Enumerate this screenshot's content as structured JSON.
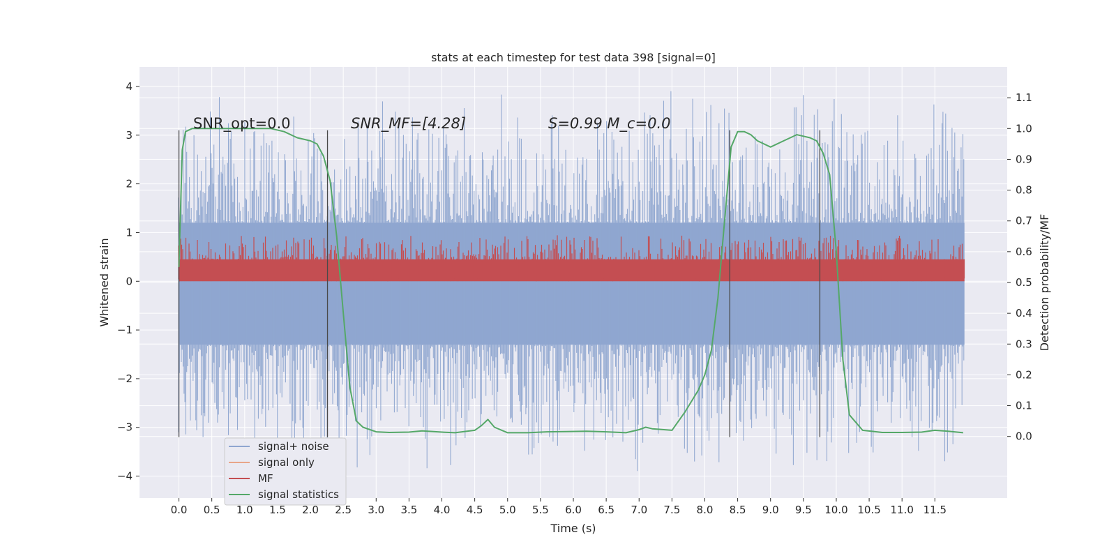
{
  "chart_data": {
    "type": "line",
    "title": "stats at each timestep for test data 398 [signal=0]",
    "xlabel": "Time (s)",
    "ylabel": "Whitened strain",
    "y2label": "Detection probability/MF",
    "xlim": [
      -0.6,
      12.6
    ],
    "ylim": [
      -4.45,
      4.4
    ],
    "y2lim": [
      -0.2,
      1.2
    ],
    "x_ticks": [
      0.0,
      0.5,
      1.0,
      1.5,
      2.0,
      2.5,
      3.0,
      3.5,
      4.0,
      4.5,
      5.0,
      5.5,
      6.0,
      6.5,
      7.0,
      7.5,
      8.0,
      8.5,
      9.0,
      9.5,
      10.0,
      10.5,
      11.0,
      11.5
    ],
    "x_tick_labels": [
      "0.0",
      "0.5",
      "1.0",
      "1.5",
      "2.0",
      "2.5",
      "3.0",
      "3.5",
      "4.0",
      "4.5",
      "5.0",
      "5.5",
      "6.0",
      "6.5",
      "7.0",
      "7.5",
      "8.0",
      "8.5",
      "9.0",
      "9.5",
      "10.0",
      "10.5",
      "11.0",
      "11.5"
    ],
    "y_ticks": [
      4,
      3,
      2,
      1,
      0,
      -1,
      -2,
      -3,
      -4
    ],
    "y_tick_labels": [
      "4",
      "3",
      "2",
      "1",
      "0",
      "−1",
      "−2",
      "−3",
      "−4"
    ],
    "y2_ticks": [
      1.1,
      1.0,
      0.9,
      0.8,
      0.7,
      0.6,
      0.5,
      0.4,
      0.3,
      0.2,
      0.1,
      0.0
    ],
    "y2_tick_labels": [
      "1.1",
      "1.0",
      "0.9",
      "0.8",
      "0.7",
      "0.6",
      "0.5",
      "0.4",
      "0.3",
      "0.2",
      "0.1",
      "0.0"
    ],
    "grid": true,
    "legend_position": "lower-left",
    "noise_band": {
      "t_start": 0.0,
      "t_end": 11.95,
      "typical_low": -1.3,
      "typical_high": 1.2,
      "peak_max": 4.0,
      "peak_min": -4.1
    },
    "mf_band": {
      "t_start": 0.0,
      "t_end": 11.95,
      "low": 0.0,
      "high": 0.55,
      "peak_max": 0.95
    },
    "vertical_markers": [
      0.0,
      2.26,
      8.38,
      9.75
    ],
    "marker_range": [
      -3.2,
      3.1
    ],
    "signal_statistics": {
      "t": [
        0.0,
        0.05,
        0.1,
        0.2,
        0.4,
        0.7,
        1.0,
        1.4,
        1.6,
        1.8,
        2.0,
        2.1,
        2.2,
        2.3,
        2.4,
        2.5,
        2.6,
        2.7,
        2.8,
        3.0,
        3.2,
        3.5,
        3.7,
        4.0,
        4.2,
        4.5,
        4.6,
        4.7,
        4.8,
        5.0,
        5.3,
        5.6,
        5.9,
        6.2,
        6.5,
        6.8,
        7.0,
        7.1,
        7.2,
        7.5,
        7.7,
        7.9,
        8.0,
        8.1,
        8.2,
        8.3,
        8.4,
        8.5,
        8.6,
        8.7,
        8.8,
        9.0,
        9.2,
        9.4,
        9.6,
        9.7,
        9.8,
        9.9,
        10.0,
        10.1,
        10.2,
        10.4,
        10.7,
        11.0,
        11.3,
        11.5,
        11.7,
        11.93
      ],
      "p": [
        0.55,
        0.93,
        0.99,
        1.0,
        1.0,
        1.0,
        1.0,
        1.0,
        0.99,
        0.97,
        0.96,
        0.95,
        0.91,
        0.83,
        0.65,
        0.4,
        0.16,
        0.05,
        0.03,
        0.015,
        0.013,
        0.014,
        0.018,
        0.014,
        0.012,
        0.02,
        0.035,
        0.055,
        0.03,
        0.012,
        0.012,
        0.015,
        0.016,
        0.017,
        0.015,
        0.012,
        0.022,
        0.03,
        0.025,
        0.02,
        0.08,
        0.15,
        0.2,
        0.28,
        0.45,
        0.7,
        0.94,
        0.99,
        0.99,
        0.98,
        0.96,
        0.94,
        0.96,
        0.98,
        0.97,
        0.96,
        0.92,
        0.85,
        0.6,
        0.25,
        0.07,
        0.02,
        0.013,
        0.013,
        0.014,
        0.02,
        0.017,
        0.012
      ]
    },
    "series": [
      {
        "name": "signal+ noise",
        "color": "#8fa6d0"
      },
      {
        "name": "signal only",
        "color": "#e8a589"
      },
      {
        "name": "MF",
        "color": "#c44e52"
      },
      {
        "name": "signal statistics",
        "color": "#55a868"
      }
    ],
    "annotations": [
      {
        "id": "snr_opt",
        "text": "SNR_opt=0.0",
        "x": 0.2,
        "y2": 1.0
      },
      {
        "id": "snr_mf",
        "text": "SNR_MF=[4.28]",
        "x": 2.6,
        "y2": 1.0
      },
      {
        "id": "s_mc",
        "text": "S=0.99   M_c=0.0",
        "x": 5.6,
        "y2": 1.0
      }
    ]
  },
  "colors": {
    "plot_background": "#eaeaf2",
    "grid": "#ffffff",
    "noise": "#8fa6d0",
    "mf": "#c44e52",
    "stats": "#55a868",
    "signal_only": "#e8a589",
    "marker": "#4a4a4a"
  }
}
